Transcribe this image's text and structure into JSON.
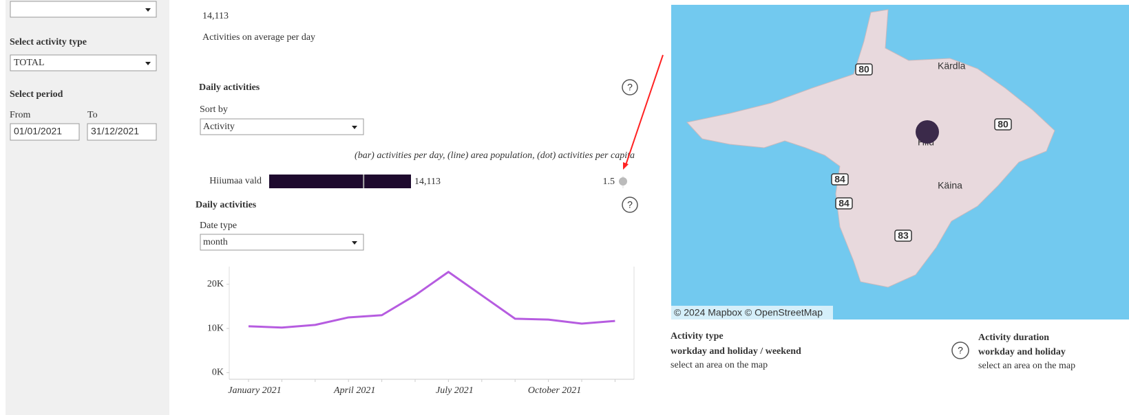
{
  "sidebar": {
    "activity_type_label": "Select activity type",
    "activity_type": "TOTAL",
    "period_label": "Select period",
    "from_label": "From",
    "to_label": "To",
    "from": "01/01/2021",
    "to": "31/12/2021"
  },
  "summary": {
    "value": "14,113",
    "caption": "Activities on average per day"
  },
  "ranking": {
    "title": "Daily activities",
    "sort_label": "Sort by",
    "sort": "Activity",
    "legend": "(bar) activities per day, (line) area population, (dot) activities per capita",
    "area": "Hiiumaa vald",
    "activities": 14113,
    "activities_label": "14,113",
    "population": 9400,
    "per_capita": 1.5,
    "xlim": [
      0,
      14113
    ],
    "bar_color": "#1e0a2e"
  },
  "trend": {
    "type": "line",
    "title": "Daily activities",
    "date_type_label": "Date type",
    "date_type": "month",
    "categories": [
      "January 2021",
      null,
      null,
      "April 2021",
      null,
      null,
      "July 2021",
      null,
      null,
      "October 2021",
      null,
      null
    ],
    "values": [
      10500,
      10200,
      10800,
      12500,
      13000,
      17500,
      22800,
      17500,
      12200,
      12000,
      11100,
      11700
    ],
    "color": "#b65ce0",
    "ylim": [
      -1500,
      24000
    ],
    "yticks": [
      {
        "value": 0,
        "label": "0K"
      },
      {
        "value": 10000,
        "label": "10K"
      },
      {
        "value": 20000,
        "label": "20K"
      }
    ]
  },
  "map": {
    "attribution": "© 2024 Mapbox © OpenStreetMap",
    "places": [
      "Kärdla",
      "Hiiu",
      "Käina"
    ],
    "roads": [
      "80",
      "80",
      "84",
      "84",
      "83"
    ]
  },
  "panels": [
    {
      "title": "Activity type",
      "subtitle": "workday  and holiday / weekend",
      "hint": "select an area on the map"
    },
    {
      "title": "Activity duration",
      "subtitle": "workday and holiday",
      "hint": "select an area on the map"
    }
  ]
}
